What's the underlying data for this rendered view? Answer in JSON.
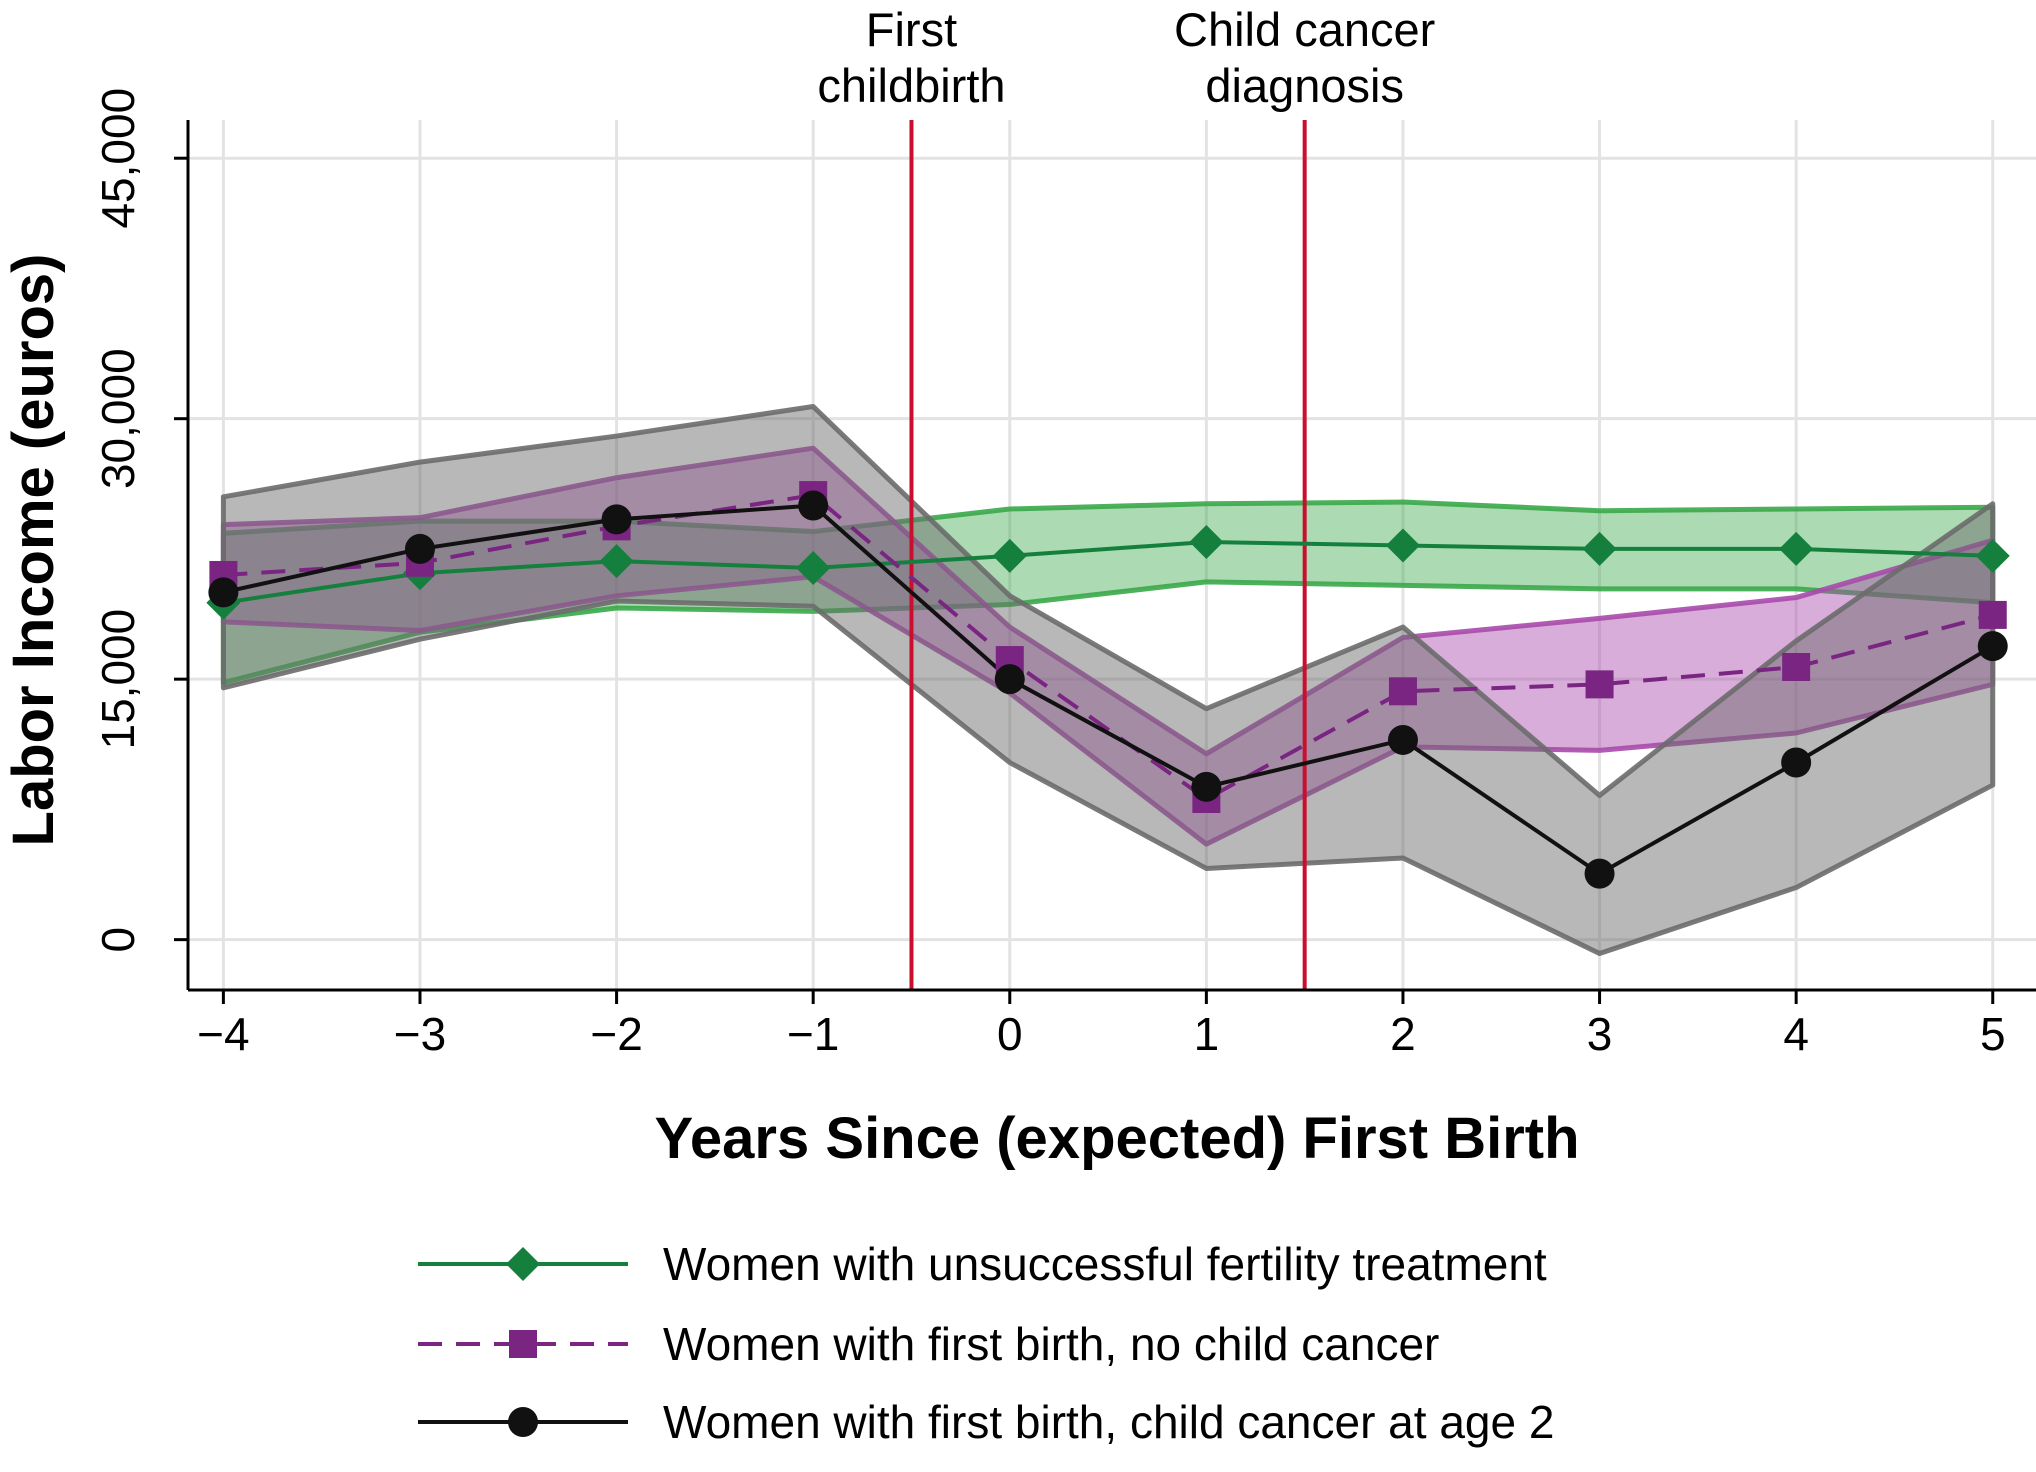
{
  "chart_data": {
    "type": "line",
    "title": "",
    "xlabel": "Years Since (expected) First Birth",
    "ylabel": "Labor Income (euros)",
    "x": [
      -4,
      -3,
      -2,
      -1,
      0,
      1,
      2,
      3,
      4,
      5
    ],
    "x_tick_labels": [
      "−4",
      "−3",
      "−2",
      "−1",
      "0",
      "1",
      "2",
      "3",
      "4",
      "5"
    ],
    "xlim": [
      -4.18,
      5.22
    ],
    "ylim": [
      -2900,
      47200
    ],
    "y_ticks": [
      0,
      15000,
      30000,
      45000
    ],
    "y_tick_labels": [
      "0",
      "15,000",
      "30,000",
      "45,000"
    ],
    "grid": true,
    "legend_position": "bottom",
    "vlines": [
      {
        "x": -0.5,
        "label_lines": [
          "First",
          "childbirth"
        ],
        "color": "#c8102e"
      },
      {
        "x": 1.5,
        "label_lines": [
          "Child cancer",
          "diagnosis"
        ],
        "color": "#c8102e"
      }
    ],
    "series": [
      {
        "name": "Women with unsuccessful fertility treatment",
        "color": "#15803d",
        "band_color": "#3aa84a",
        "band_opacity": 0.42,
        "dash": false,
        "marker": "diamond",
        "values": [
          19400,
          21100,
          21800,
          21400,
          22100,
          22900,
          22700,
          22500,
          22500,
          22100
        ],
        "lower": [
          14800,
          17700,
          19100,
          18900,
          19300,
          20600,
          20400,
          20200,
          20200,
          19400
        ],
        "upper": [
          23400,
          24100,
          24100,
          23500,
          24800,
          25100,
          25200,
          24700,
          24800,
          24900
        ]
      },
      {
        "name": "Women with first birth, no child cancer",
        "color": "#7a2582",
        "band_color": "#a94aab",
        "band_opacity": 0.45,
        "dash": true,
        "marker": "square",
        "values": [
          21000,
          21700,
          23800,
          25600,
          16100,
          8100,
          14300,
          14700,
          15700,
          18700
        ],
        "lower": [
          18300,
          17800,
          19800,
          20900,
          14200,
          5500,
          11100,
          10900,
          11900,
          14700
        ],
        "upper": [
          23900,
          24300,
          26600,
          28300,
          18000,
          10700,
          17400,
          18500,
          19700,
          23000
        ]
      },
      {
        "name": "Women with first birth, child cancer at age 2",
        "color": "#111111",
        "band_color": "#6b6b6b",
        "band_opacity": 0.48,
        "dash": false,
        "marker": "circle",
        "values": [
          20000,
          22500,
          24200,
          25000,
          15000,
          8800,
          11500,
          3800,
          10200,
          16900
        ],
        "lower": [
          14500,
          17300,
          19500,
          19200,
          10200,
          4100,
          4700,
          -800,
          3000,
          8900
        ],
        "upper": [
          25500,
          27500,
          29000,
          30700,
          19800,
          13300,
          18000,
          8300,
          17200,
          25100
        ]
      }
    ]
  }
}
